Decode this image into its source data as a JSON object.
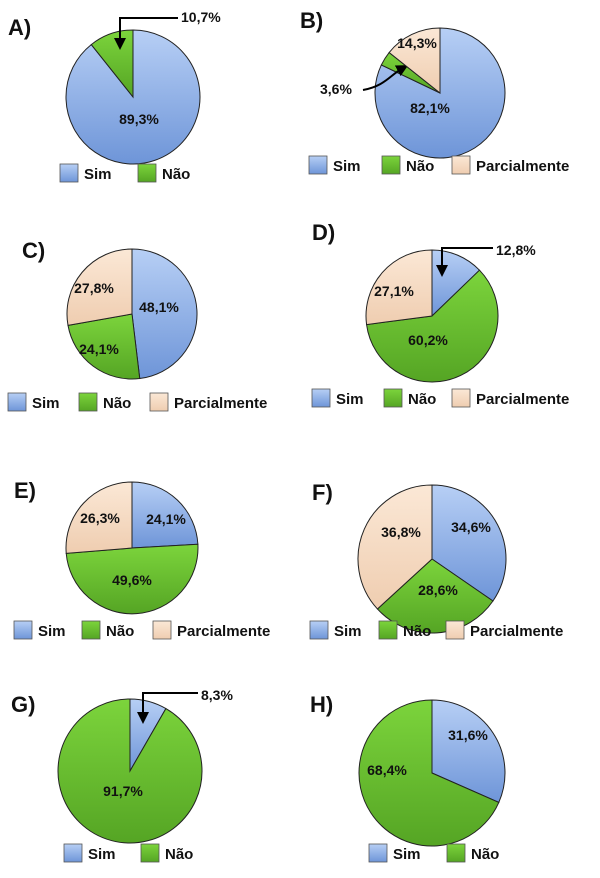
{
  "colors": {
    "sim": "#8eb1e8",
    "nao": "#6cc230",
    "parcialmente": "#f7dcc4",
    "stroke": "#222222",
    "text": "#111111"
  },
  "legend_labels": {
    "sim": "Sim",
    "nao": "Não",
    "parcialmente": "Parcialmente"
  },
  "chart_data": [
    {
      "id": "A",
      "panel_label": "A)",
      "type": "pie",
      "slices": [
        {
          "key": "sim",
          "name": "Sim",
          "value": 89.3,
          "label": "89,3%"
        },
        {
          "key": "nao",
          "name": "Não",
          "value": 10.7,
          "label": "10,7%"
        }
      ],
      "legend": [
        "Sim",
        "Não"
      ]
    },
    {
      "id": "B",
      "panel_label": "B)",
      "type": "pie",
      "slices": [
        {
          "key": "sim",
          "name": "Sim",
          "value": 82.1,
          "label": "82,1%"
        },
        {
          "key": "nao",
          "name": "Não",
          "value": 3.6,
          "label": "3,6%"
        },
        {
          "key": "parcialmente",
          "name": "Parcialmente",
          "value": 14.3,
          "label": "14,3%"
        }
      ],
      "legend": [
        "Sim",
        "Não",
        "Parcialmente"
      ]
    },
    {
      "id": "C",
      "panel_label": "C)",
      "type": "pie",
      "slices": [
        {
          "key": "sim",
          "name": "Sim",
          "value": 48.1,
          "label": "48,1%"
        },
        {
          "key": "nao",
          "name": "Não",
          "value": 24.1,
          "label": "24,1%"
        },
        {
          "key": "parcialmente",
          "name": "Parcialmente",
          "value": 27.8,
          "label": "27,8%"
        }
      ],
      "legend": [
        "Sim",
        "Não",
        "Parcialmente"
      ]
    },
    {
      "id": "D",
      "panel_label": "D)",
      "type": "pie",
      "slices": [
        {
          "key": "sim",
          "name": "Sim",
          "value": 12.8,
          "label": "12,8%"
        },
        {
          "key": "nao",
          "name": "Não",
          "value": 60.2,
          "label": "60,2%"
        },
        {
          "key": "parcialmente",
          "name": "Parcialmente",
          "value": 27.1,
          "label": "27,1%"
        }
      ],
      "legend": [
        "Sim",
        "Não",
        "Parcialmente"
      ]
    },
    {
      "id": "E",
      "panel_label": "E)",
      "type": "pie",
      "slices": [
        {
          "key": "sim",
          "name": "Sim",
          "value": 24.1,
          "label": "24,1%"
        },
        {
          "key": "nao",
          "name": "Não",
          "value": 49.6,
          "label": "49,6%"
        },
        {
          "key": "parcialmente",
          "name": "Parcialmente",
          "value": 26.3,
          "label": "26,3%"
        }
      ],
      "legend": [
        "Sim",
        "Não",
        "Parcialmente"
      ]
    },
    {
      "id": "F",
      "panel_label": "F)",
      "type": "pie",
      "slices": [
        {
          "key": "sim",
          "name": "Sim",
          "value": 34.6,
          "label": "34,6%"
        },
        {
          "key": "nao",
          "name": "Não",
          "value": 28.6,
          "label": "28,6%"
        },
        {
          "key": "parcialmente",
          "name": "Parcialmente",
          "value": 36.8,
          "label": "36,8%"
        }
      ],
      "legend": [
        "Sim",
        "Não",
        "Parcialmente"
      ]
    },
    {
      "id": "G",
      "panel_label": "G)",
      "type": "pie",
      "slices": [
        {
          "key": "sim",
          "name": "Sim",
          "value": 8.3,
          "label": "8,3%"
        },
        {
          "key": "nao",
          "name": "Não",
          "value": 91.7,
          "label": "91,7%"
        }
      ],
      "legend": [
        "Sim",
        "Não"
      ]
    },
    {
      "id": "H",
      "panel_label": "H)",
      "type": "pie",
      "slices": [
        {
          "key": "sim",
          "name": "Sim",
          "value": 31.6,
          "label": "31,6%"
        },
        {
          "key": "nao",
          "name": "Não",
          "value": 68.4,
          "label": "68,4%"
        }
      ],
      "legend": [
        "Sim",
        "Não"
      ]
    }
  ]
}
